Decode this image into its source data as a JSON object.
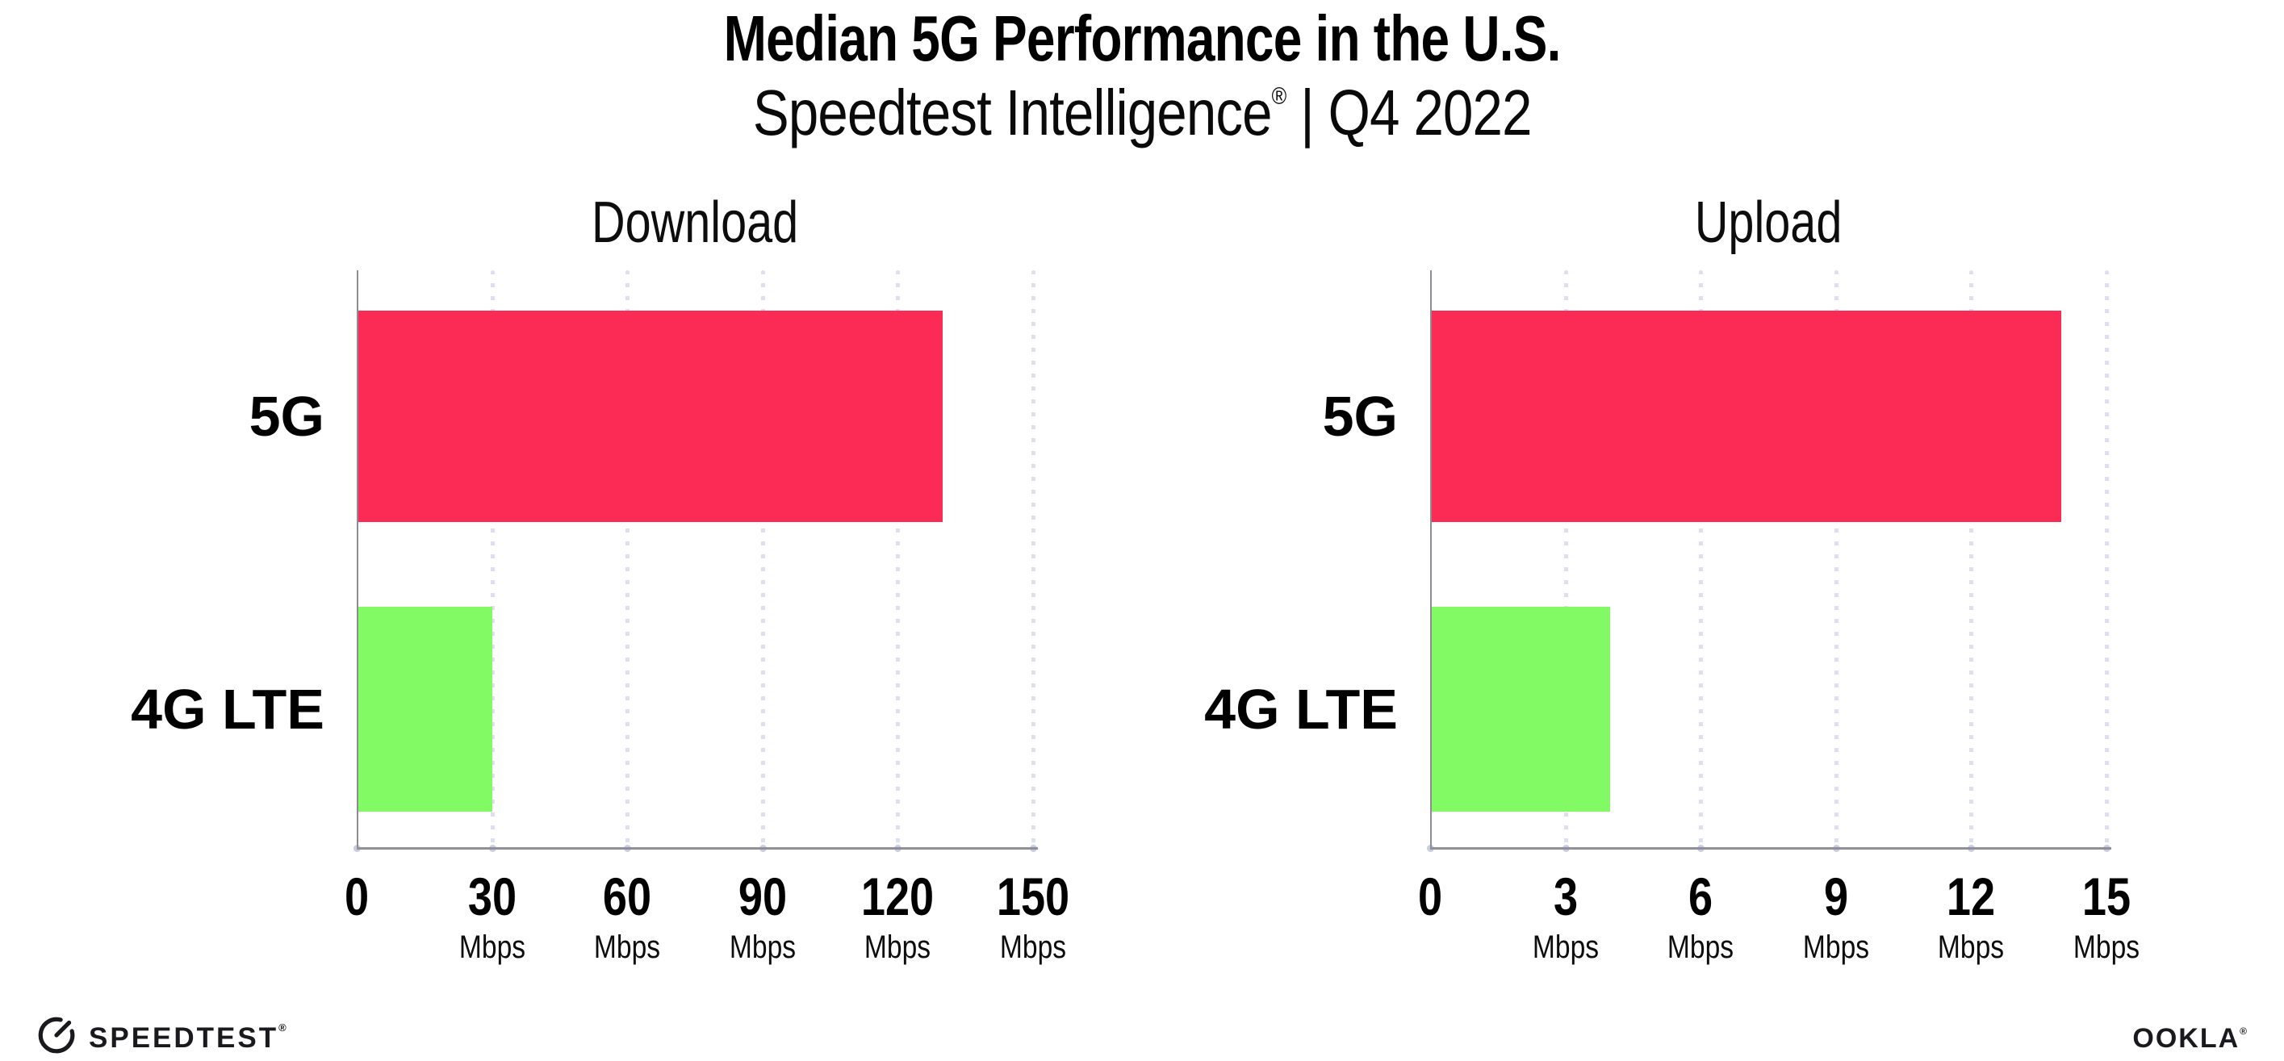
{
  "header": {
    "title": "Median 5G Performance in the U.S.",
    "subtitle_brand": "Speedtest Intelligence",
    "subtitle_reg": "®",
    "subtitle_period": " | Q4 2022"
  },
  "chart_data": [
    {
      "type": "bar",
      "orientation": "horizontal",
      "title": "Download",
      "categories": [
        "5G",
        "4G LTE"
      ],
      "values": [
        130,
        30
      ],
      "unit": "Mbps",
      "xlim": [
        0,
        150
      ],
      "ticks": [
        0,
        30,
        60,
        90,
        120,
        150
      ],
      "grid": "dotted-vertical",
      "legend": "none"
    },
    {
      "type": "bar",
      "orientation": "horizontal",
      "title": "Upload",
      "categories": [
        "5G",
        "4G LTE"
      ],
      "values": [
        14,
        4
      ],
      "unit": "Mbps",
      "xlim": [
        0,
        15
      ],
      "ticks": [
        0,
        3,
        6,
        9,
        12,
        15
      ],
      "grid": "dotted-vertical",
      "legend": "none"
    }
  ],
  "colors": {
    "bar_5g": "#FB2B55",
    "bar_4g_lte": "#81FA63",
    "gridline": "#DFE0EE",
    "axis_v": "#8C8C92",
    "axis_h": "#90909A",
    "tick_dot": "#C9CBDE",
    "text": "#000000"
  },
  "footer": {
    "speedtest_label": "SPEEDTEST",
    "speedtest_reg": "®",
    "ookla_label": "OOKLA",
    "ookla_reg": "®"
  }
}
